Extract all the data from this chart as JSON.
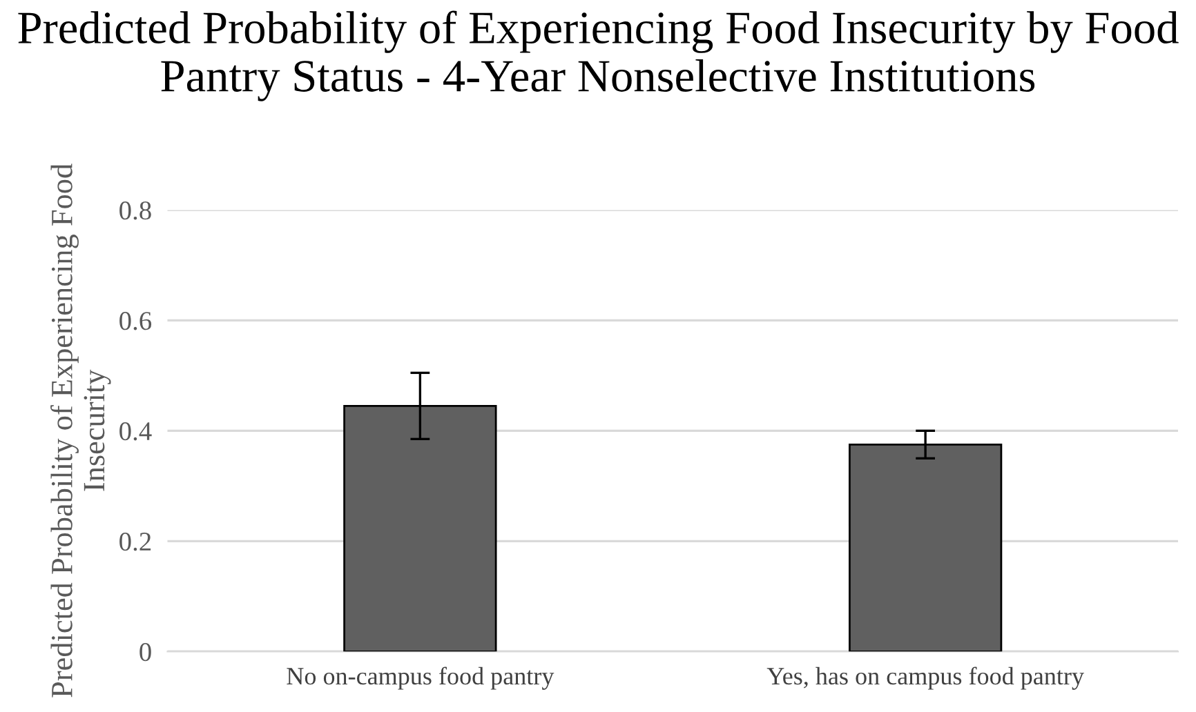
{
  "chart_data": {
    "type": "bar",
    "title": "Predicted Probability of Experiencing Food Insecurity by Food Pantry Status - 4-Year Nonselective Institutions",
    "ylabel": "Predicted Probability of Experiencing Food Insecurity",
    "categories": [
      "No on-campus food pantry",
      "Yes, has on campus food pantry"
    ],
    "values": [
      0.445,
      0.375
    ],
    "errors": [
      0.06,
      0.025
    ],
    "color": "#606060",
    "ylim": [
      0,
      0.8
    ],
    "yticks": [
      0,
      0.2,
      0.4,
      0.6,
      0.8
    ],
    "grid": "y",
    "legend": false
  }
}
